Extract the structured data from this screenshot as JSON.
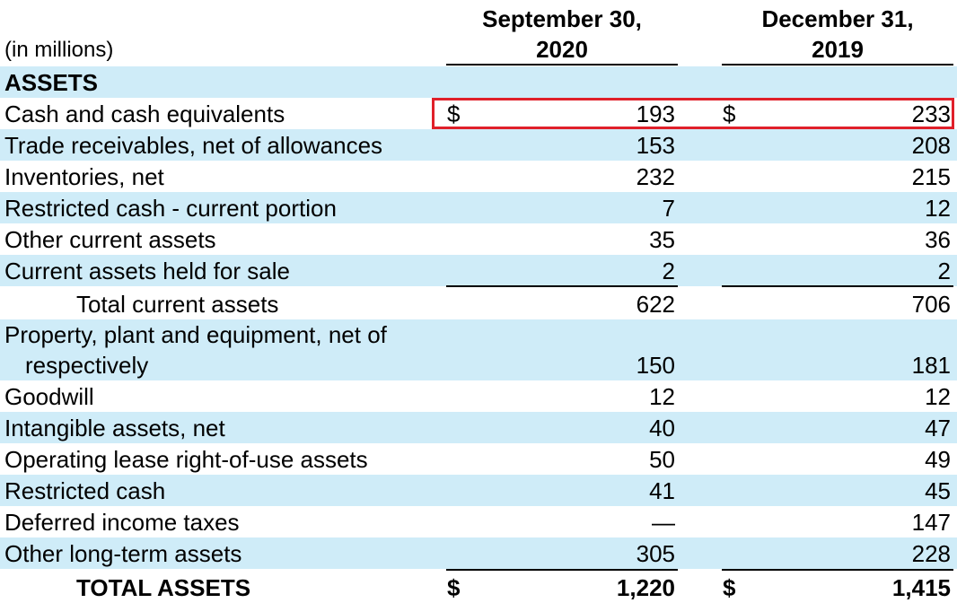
{
  "header": {
    "units": "(in millions)",
    "col1": "September 30,\n2020",
    "col1_line1": "September 30,",
    "col1_line2": "2020",
    "col2_line1": "December 31,",
    "col2_line2": "2019"
  },
  "section": {
    "assets": "ASSETS"
  },
  "rows": [
    {
      "label": "Cash and cash equivalents",
      "currency": "$",
      "v2020": "193",
      "v2019": "233"
    },
    {
      "label": "Trade receivables, net of allowances",
      "v2020": "153",
      "v2019": "208"
    },
    {
      "label": "Inventories, net",
      "v2020": "232",
      "v2019": "215"
    },
    {
      "label": "Restricted cash - current portion",
      "v2020": "7",
      "v2019": "12"
    },
    {
      "label": "Other current assets",
      "v2020": "35",
      "v2019": "36"
    },
    {
      "label": "Current assets held for sale",
      "v2020": "2",
      "v2019": "2"
    },
    {
      "label": "Total current assets",
      "v2020": "622",
      "v2019": "706"
    },
    {
      "label_line1": "Property, plant and equipment, net of",
      "label_line2": "respectively",
      "v2020": "150",
      "v2019": "181"
    },
    {
      "label": "Goodwill",
      "v2020": "12",
      "v2019": "12"
    },
    {
      "label": "Intangible assets, net",
      "v2020": "40",
      "v2019": "47"
    },
    {
      "label": "Operating lease right-of-use assets",
      "v2020": "50",
      "v2019": "49"
    },
    {
      "label": "Restricted cash",
      "v2020": "41",
      "v2019": "45"
    },
    {
      "label": "Deferred income taxes",
      "v2020": "—",
      "v2019": "147"
    },
    {
      "label": "Other long-term assets",
      "v2020": "305",
      "v2019": "228"
    },
    {
      "label": "TOTAL ASSETS",
      "currency": "$",
      "v2020": "1,220",
      "v2019": "1,415"
    }
  ],
  "colors": {
    "row_shade": "#cfecf8",
    "highlight_border": "#e0202a"
  }
}
